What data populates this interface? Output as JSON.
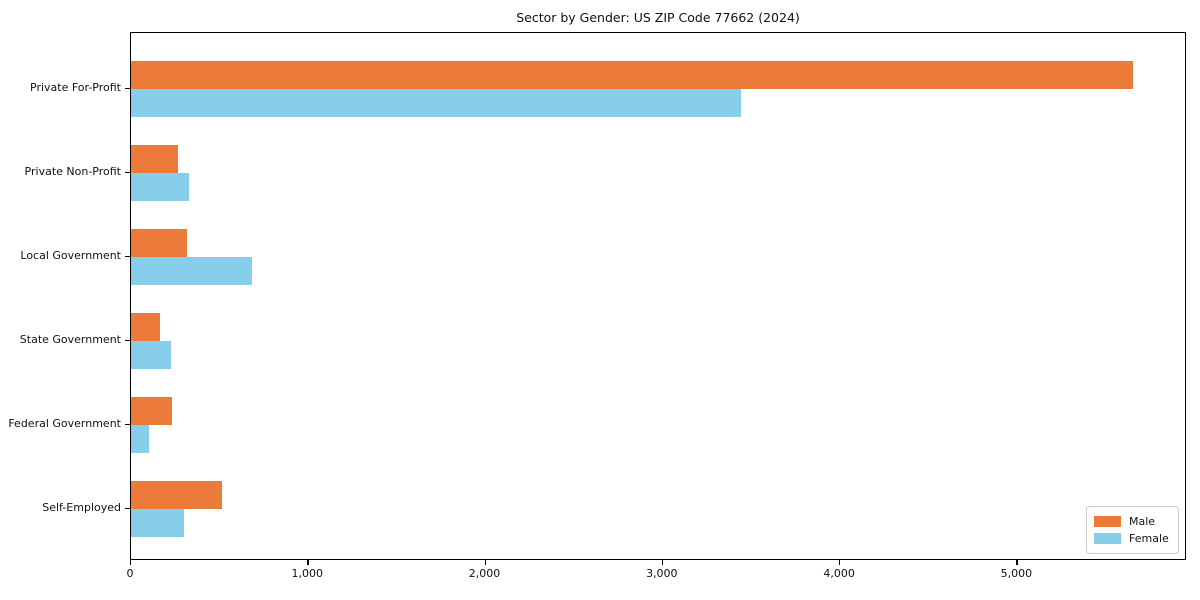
{
  "chart_data": {
    "type": "bar",
    "orientation": "horizontal",
    "title": "Sector by Gender: US ZIP Code 77662 (2024)",
    "categories": [
      "Private For-Profit",
      "Private Non-Profit",
      "Local Government",
      "State Government",
      "Federal Government",
      "Self-Employed"
    ],
    "series": [
      {
        "name": "Male",
        "color": "#EC7A38",
        "values": [
          5650,
          265,
          315,
          165,
          230,
          515
        ]
      },
      {
        "name": "Female",
        "color": "#87CEEB",
        "values": [
          3440,
          325,
          680,
          225,
          100,
          300
        ]
      }
    ],
    "xlabel": "",
    "ylabel": "",
    "xlim": [
      0,
      5940
    ],
    "xticks": [
      0,
      1000,
      2000,
      3000,
      4000,
      5000
    ],
    "xtick_labels": [
      "0",
      "1,000",
      "2,000",
      "3,000",
      "4,000",
      "5,000"
    ],
    "legend_position": "lower right",
    "grid": false,
    "plot_border_color": "#000000",
    "background_color": "#ffffff"
  }
}
